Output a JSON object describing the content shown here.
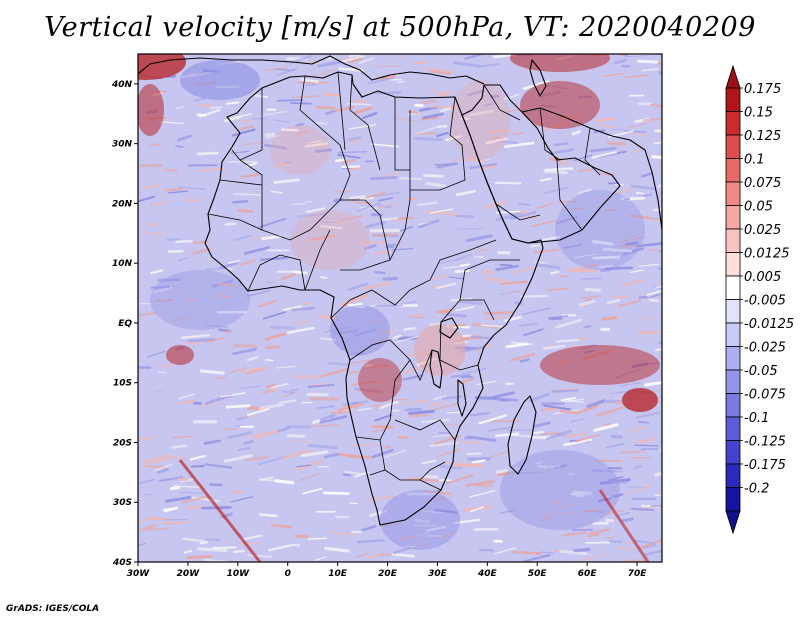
{
  "title": "Vertical velocity [m/s] at 500hPa, VT: 2020040209",
  "footer": "GrADS: IGES/COLA",
  "map": {
    "region": "Africa, Middle East and surrounding oceans",
    "lon_range": [
      -30,
      75
    ],
    "lat_range": [
      -40,
      45
    ],
    "lon_ticks": [
      "30W",
      "20W",
      "10W",
      "0",
      "10E",
      "20E",
      "30E",
      "40E",
      "50E",
      "60E",
      "70E"
    ],
    "lat_ticks": [
      "40N",
      "30N",
      "20N",
      "10N",
      "EQ",
      "10S",
      "20S",
      "30S",
      "40S"
    ]
  },
  "colorbar": {
    "levels": [
      "0.175",
      "0.15",
      "0.125",
      "0.1",
      "0.075",
      "0.05",
      "0.025",
      "0.0125",
      "0.005",
      "-0.005",
      "-0.0125",
      "-0.025",
      "-0.05",
      "-0.075",
      "-0.1",
      "-0.125",
      "-0.175",
      "-0.2"
    ],
    "colors": [
      "#b0151a",
      "#cb2b2b",
      "#dd4c4c",
      "#e86a68",
      "#ef8a86",
      "#f4a7a3",
      "#f8c4c1",
      "#fbdfdd",
      "#ffffff",
      "#e2e2fb",
      "#c9c9f6",
      "#aeaef0",
      "#9494ea",
      "#7a7ae2",
      "#5d5dda",
      "#4343d0",
      "#2a2abd",
      "#14149e"
    ],
    "top_arrow_color": "#a00f14",
    "bottom_arrow_color": "#10108a"
  },
  "field_colors": {
    "background": "#c6c6f0",
    "rising": "#e8a6a4",
    "strong_rising": "#b8282a",
    "sinking": "#8f8fe4",
    "neutral": "#f4f0f4"
  }
}
